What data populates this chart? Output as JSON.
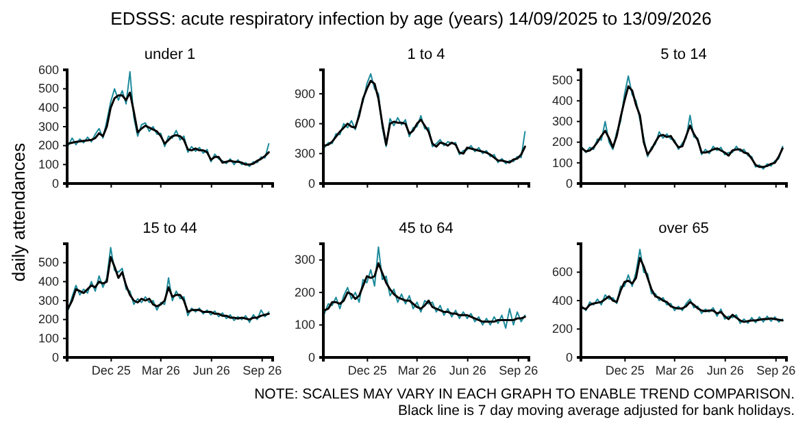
{
  "chart_data": [
    {
      "type": "line",
      "title": "under 1",
      "ylabel": "daily attendances",
      "annotations": [
        "EDSSS: acute respiratory infection by age (years) 14/09/2025 to 13/09/2026"
      ],
      "tick_labels": "y",
      "xlim": [
        "2025-09-12",
        "2026-09-20"
      ],
      "xticks": [
        {
          "value": "2025-12-01",
          "label": null
        },
        {
          "value": "2026-03-01",
          "label": null
        },
        {
          "value": "2026-06-01",
          "label": null
        },
        {
          "value": "2026-09-01",
          "label": null
        }
      ],
      "ylim": [
        0,
        600
      ],
      "yticks": [
        0,
        100,
        200,
        300,
        400,
        500,
        600
      ],
      "x": [
        "2025-09-14",
        "2025-09-21",
        "2025-09-28",
        "2025-10-05",
        "2025-10-12",
        "2025-10-19",
        "2025-10-26",
        "2025-11-02",
        "2025-11-09",
        "2025-11-16",
        "2025-11-23",
        "2025-11-30",
        "2025-12-07",
        "2025-12-14",
        "2025-12-21",
        "2025-12-28",
        "2026-01-04",
        "2026-01-11",
        "2026-01-18",
        "2026-01-25",
        "2026-02-01",
        "2026-02-08",
        "2026-02-15",
        "2026-02-22",
        "2026-03-01",
        "2026-03-08",
        "2026-03-15",
        "2026-03-22",
        "2026-03-29",
        "2026-04-05",
        "2026-04-12",
        "2026-04-19",
        "2026-04-26",
        "2026-05-03",
        "2026-05-10",
        "2026-05-17",
        "2026-05-24",
        "2026-05-31",
        "2026-06-07",
        "2026-06-14",
        "2026-06-21",
        "2026-06-28",
        "2026-07-05",
        "2026-07-12",
        "2026-07-19",
        "2026-07-26",
        "2026-08-02",
        "2026-08-09",
        "2026-08-16",
        "2026-08-23",
        "2026-08-30",
        "2026-09-06",
        "2026-09-13"
      ],
      "series": [
        {
          "color": "#1b8a9a",
          "values": [
            200,
            240,
            205,
            235,
            215,
            245,
            220,
            260,
            290,
            240,
            330,
            430,
            500,
            440,
            490,
            420,
            590,
            350,
            250,
            310,
            320,
            275,
            300,
            260,
            265,
            195,
            250,
            240,
            280,
            230,
            250,
            165,
            195,
            170,
            190,
            160,
            180,
            115,
            155,
            130,
            120,
            105,
            130,
            100,
            125,
            100,
            110,
            90,
            115,
            110,
            140,
            135,
            210
          ]
        },
        {
          "color": "#000000",
          "values": [
            210,
            215,
            220,
            222,
            225,
            228,
            230,
            240,
            265,
            250,
            300,
            400,
            450,
            465,
            465,
            440,
            480,
            380,
            270,
            290,
            305,
            295,
            285,
            275,
            250,
            210,
            230,
            250,
            255,
            250,
            230,
            180,
            175,
            185,
            175,
            175,
            165,
            125,
            140,
            140,
            110,
            115,
            120,
            115,
            115,
            110,
            100,
            100,
            105,
            120,
            130,
            145,
            165
          ]
        }
      ]
    },
    {
      "type": "line",
      "title": "1 to 4",
      "tick_labels": "y",
      "xlim": [
        "2025-09-12",
        "2026-09-20"
      ],
      "xticks": [
        {
          "value": "2025-12-01",
          "label": null
        },
        {
          "value": "2026-03-01",
          "label": null
        },
        {
          "value": "2026-06-01",
          "label": null
        },
        {
          "value": "2026-09-01",
          "label": null
        }
      ],
      "ylim": [
        0,
        1140
      ],
      "yticks": [
        0,
        300,
        600,
        900
      ],
      "x": [
        "2025-09-14",
        "2025-09-21",
        "2025-09-28",
        "2025-10-05",
        "2025-10-12",
        "2025-10-19",
        "2025-10-26",
        "2025-11-02",
        "2025-11-09",
        "2025-11-16",
        "2025-11-23",
        "2025-11-30",
        "2025-12-07",
        "2025-12-14",
        "2025-12-21",
        "2025-12-28",
        "2026-01-04",
        "2026-01-11",
        "2026-01-18",
        "2026-01-25",
        "2026-02-01",
        "2026-02-08",
        "2026-02-15",
        "2026-02-22",
        "2026-03-01",
        "2026-03-08",
        "2026-03-15",
        "2026-03-22",
        "2026-03-29",
        "2026-04-05",
        "2026-04-12",
        "2026-04-19",
        "2026-04-26",
        "2026-05-03",
        "2026-05-10",
        "2026-05-17",
        "2026-05-24",
        "2026-05-31",
        "2026-06-07",
        "2026-06-14",
        "2026-06-21",
        "2026-06-28",
        "2026-07-05",
        "2026-07-12",
        "2026-07-19",
        "2026-07-26",
        "2026-08-02",
        "2026-08-09",
        "2026-08-16",
        "2026-08-23",
        "2026-08-30",
        "2026-09-06",
        "2026-09-13"
      ],
      "series": [
        {
          "color": "#1b8a9a",
          "values": [
            360,
            410,
            400,
            500,
            490,
            600,
            560,
            630,
            540,
            720,
            820,
            1000,
            1100,
            950,
            900,
            560,
            370,
            650,
            580,
            660,
            590,
            640,
            470,
            560,
            570,
            680,
            550,
            560,
            370,
            400,
            440,
            380,
            420,
            400,
            410,
            290,
            330,
            340,
            380,
            320,
            360,
            300,
            330,
            270,
            290,
            210,
            250,
            200,
            230,
            220,
            270,
            260,
            520
          ]
        },
        {
          "color": "#000000",
          "values": [
            380,
            390,
            420,
            470,
            520,
            560,
            600,
            570,
            560,
            680,
            850,
            950,
            1030,
            1000,
            850,
            600,
            390,
            600,
            620,
            610,
            610,
            600,
            500,
            530,
            600,
            640,
            580,
            520,
            400,
            370,
            410,
            400,
            380,
            410,
            390,
            310,
            300,
            360,
            350,
            340,
            330,
            320,
            310,
            290,
            260,
            230,
            230,
            220,
            210,
            240,
            250,
            290,
            370
          ]
        }
      ]
    },
    {
      "type": "line",
      "title": "5 to 14",
      "tick_labels": "y",
      "xlim": [
        "2025-09-12",
        "2026-09-20"
      ],
      "xticks": [
        {
          "value": "2025-12-01",
          "label": null
        },
        {
          "value": "2026-03-01",
          "label": null
        },
        {
          "value": "2026-06-01",
          "label": null
        },
        {
          "value": "2026-09-01",
          "label": null
        }
      ],
      "ylim": [
        0,
        550
      ],
      "yticks": [
        0,
        100,
        200,
        300,
        400,
        500
      ],
      "x": [
        "2025-09-14",
        "2025-09-21",
        "2025-09-28",
        "2025-10-05",
        "2025-10-12",
        "2025-10-19",
        "2025-10-26",
        "2025-11-02",
        "2025-11-09",
        "2025-11-16",
        "2025-11-23",
        "2025-11-30",
        "2025-12-07",
        "2025-12-14",
        "2025-12-21",
        "2025-12-28",
        "2026-01-04",
        "2026-01-11",
        "2026-01-18",
        "2026-01-25",
        "2026-02-01",
        "2026-02-08",
        "2026-02-15",
        "2026-02-22",
        "2026-03-01",
        "2026-03-08",
        "2026-03-15",
        "2026-03-22",
        "2026-03-29",
        "2026-04-05",
        "2026-04-12",
        "2026-04-19",
        "2026-04-26",
        "2026-05-03",
        "2026-05-10",
        "2026-05-17",
        "2026-05-24",
        "2026-05-31",
        "2026-06-07",
        "2026-06-14",
        "2026-06-21",
        "2026-06-28",
        "2026-07-05",
        "2026-07-12",
        "2026-07-19",
        "2026-07-26",
        "2026-08-02",
        "2026-08-09",
        "2026-08-16",
        "2026-08-23",
        "2026-08-30",
        "2026-09-06",
        "2026-09-13"
      ],
      "series": [
        {
          "color": "#1b8a9a",
          "values": [
            175,
            150,
            175,
            165,
            215,
            210,
            300,
            200,
            165,
            250,
            300,
            430,
            520,
            430,
            400,
            310,
            220,
            130,
            175,
            190,
            250,
            220,
            240,
            215,
            210,
            165,
            195,
            220,
            330,
            225,
            220,
            140,
            165,
            145,
            180,
            160,
            175,
            140,
            150,
            150,
            180,
            155,
            165,
            135,
            130,
            80,
            90,
            70,
            95,
            85,
            110,
            120,
            180
          ]
        },
        {
          "color": "#000000",
          "values": [
            170,
            155,
            160,
            175,
            200,
            230,
            255,
            220,
            175,
            230,
            320,
            400,
            470,
            450,
            380,
            330,
            200,
            140,
            165,
            200,
            230,
            235,
            225,
            230,
            200,
            175,
            180,
            230,
            280,
            240,
            210,
            150,
            150,
            155,
            165,
            170,
            160,
            150,
            135,
            160,
            165,
            165,
            150,
            145,
            120,
            90,
            80,
            80,
            85,
            95,
            100,
            130,
            170
          ]
        }
      ]
    },
    {
      "type": "line",
      "title": "15 to 44",
      "xlim": [
        "2025-09-12",
        "2026-09-20"
      ],
      "xticks": [
        {
          "value": "2025-12-01",
          "label": "Dec 25"
        },
        {
          "value": "2026-03-01",
          "label": "Mar 26"
        },
        {
          "value": "2026-06-01",
          "label": "Jun 26"
        },
        {
          "value": "2026-09-01",
          "label": "Sep 26"
        }
      ],
      "ylim": [
        0,
        600
      ],
      "yticks": [
        0,
        100,
        200,
        300,
        400,
        500
      ],
      "x": [
        "2025-09-14",
        "2025-09-21",
        "2025-09-28",
        "2025-10-05",
        "2025-10-12",
        "2025-10-19",
        "2025-10-26",
        "2025-11-02",
        "2025-11-09",
        "2025-11-16",
        "2025-11-23",
        "2025-11-30",
        "2025-12-07",
        "2025-12-14",
        "2025-12-21",
        "2025-12-28",
        "2026-01-04",
        "2026-01-11",
        "2026-01-18",
        "2026-01-25",
        "2026-02-01",
        "2026-02-08",
        "2026-02-15",
        "2026-02-22",
        "2026-03-01",
        "2026-03-08",
        "2026-03-15",
        "2026-03-22",
        "2026-03-29",
        "2026-04-05",
        "2026-04-12",
        "2026-04-19",
        "2026-04-26",
        "2026-05-03",
        "2026-05-10",
        "2026-05-17",
        "2026-05-24",
        "2026-05-31",
        "2026-06-07",
        "2026-06-14",
        "2026-06-21",
        "2026-06-28",
        "2026-07-05",
        "2026-07-12",
        "2026-07-19",
        "2026-07-26",
        "2026-08-02",
        "2026-08-09",
        "2026-08-16",
        "2026-08-23",
        "2026-08-30",
        "2026-09-06",
        "2026-09-13"
      ],
      "series": [
        {
          "color": "#1b8a9a",
          "values": [
            250,
            320,
            380,
            330,
            360,
            340,
            400,
            350,
            430,
            370,
            420,
            580,
            460,
            450,
            470,
            360,
            350,
            280,
            310,
            290,
            320,
            290,
            300,
            250,
            290,
            280,
            420,
            300,
            350,
            310,
            320,
            220,
            260,
            240,
            260,
            230,
            250,
            225,
            245,
            215,
            235,
            205,
            225,
            195,
            215,
            200,
            220,
            185,
            225,
            200,
            250,
            215,
            240
          ]
        },
        {
          "color": "#000000",
          "values": [
            260,
            300,
            360,
            350,
            340,
            360,
            380,
            370,
            400,
            390,
            400,
            530,
            480,
            420,
            450,
            380,
            330,
            300,
            290,
            310,
            300,
            310,
            280,
            270,
            280,
            300,
            370,
            320,
            330,
            330,
            300,
            240,
            250,
            250,
            250,
            240,
            240,
            240,
            230,
            230,
            220,
            220,
            210,
            210,
            205,
            210,
            205,
            200,
            210,
            210,
            220,
            225,
            230
          ]
        }
      ]
    },
    {
      "type": "line",
      "title": "45 to 64",
      "xlim": [
        "2025-09-12",
        "2026-09-20"
      ],
      "xticks": [
        {
          "value": "2025-12-01",
          "label": "Dec 25"
        },
        {
          "value": "2026-03-01",
          "label": "Mar 26"
        },
        {
          "value": "2026-06-01",
          "label": "Jun 26"
        },
        {
          "value": "2026-09-01",
          "label": "Sep 26"
        }
      ],
      "ylim": [
        0,
        350
      ],
      "yticks": [
        0,
        100,
        200,
        300
      ],
      "x": [
        "2025-09-14",
        "2025-09-21",
        "2025-09-28",
        "2025-10-05",
        "2025-10-12",
        "2025-10-19",
        "2025-10-26",
        "2025-11-02",
        "2025-11-09",
        "2025-11-16",
        "2025-11-23",
        "2025-11-30",
        "2025-12-07",
        "2025-12-14",
        "2025-12-21",
        "2025-12-28",
        "2026-01-04",
        "2026-01-11",
        "2026-01-18",
        "2026-01-25",
        "2026-02-01",
        "2026-02-08",
        "2026-02-15",
        "2026-02-22",
        "2026-03-01",
        "2026-03-08",
        "2026-03-15",
        "2026-03-22",
        "2026-03-29",
        "2026-04-05",
        "2026-04-12",
        "2026-04-19",
        "2026-04-26",
        "2026-05-03",
        "2026-05-10",
        "2026-05-17",
        "2026-05-24",
        "2026-05-31",
        "2026-06-07",
        "2026-06-14",
        "2026-06-21",
        "2026-06-28",
        "2026-07-05",
        "2026-07-12",
        "2026-07-19",
        "2026-07-26",
        "2026-08-02",
        "2026-08-09",
        "2026-08-16",
        "2026-08-23",
        "2026-08-30",
        "2026-09-06",
        "2026-09-13"
      ],
      "series": [
        {
          "color": "#1b8a9a",
          "values": [
            135,
            165,
            160,
            185,
            150,
            190,
            215,
            180,
            200,
            170,
            240,
            230,
            270,
            220,
            340,
            240,
            250,
            190,
            210,
            170,
            195,
            165,
            190,
            150,
            170,
            140,
            175,
            165,
            170,
            140,
            160,
            130,
            150,
            125,
            145,
            120,
            140,
            120,
            135,
            110,
            125,
            100,
            120,
            100,
            125,
            105,
            130,
            90,
            150,
            100,
            140,
            110,
            130
          ]
        },
        {
          "color": "#000000",
          "values": [
            145,
            150,
            170,
            170,
            165,
            175,
            200,
            195,
            180,
            190,
            220,
            250,
            245,
            250,
            290,
            260,
            230,
            210,
            195,
            185,
            180,
            175,
            175,
            165,
            155,
            150,
            160,
            175,
            155,
            150,
            145,
            140,
            140,
            135,
            135,
            130,
            130,
            130,
            125,
            120,
            115,
            110,
            110,
            110,
            110,
            115,
            115,
            115,
            115,
            115,
            120,
            120,
            125
          ]
        }
      ]
    },
    {
      "type": "line",
      "title": "over 65",
      "annotations": [
        "NOTE: SCALES MAY VARY IN EACH GRAPH TO ENABLE TREND COMPARISON.",
        "Black line is 7 day moving average adjusted for bank holidays."
      ],
      "xlim": [
        "2025-09-12",
        "2026-09-20"
      ],
      "xticks": [
        {
          "value": "2025-12-01",
          "label": "Dec 25"
        },
        {
          "value": "2026-03-01",
          "label": "Mar 26"
        },
        {
          "value": "2026-06-01",
          "label": "Jun 26"
        },
        {
          "value": "2026-09-01",
          "label": "Sep 26"
        }
      ],
      "ylim": [
        0,
        800
      ],
      "yticks": [
        0,
        200,
        400,
        600
      ],
      "x": [
        "2025-09-14",
        "2025-09-21",
        "2025-09-28",
        "2025-10-05",
        "2025-10-12",
        "2025-10-19",
        "2025-10-26",
        "2025-11-02",
        "2025-11-09",
        "2025-11-16",
        "2025-11-23",
        "2025-11-30",
        "2025-12-07",
        "2025-12-14",
        "2025-12-21",
        "2025-12-28",
        "2026-01-04",
        "2026-01-11",
        "2026-01-18",
        "2026-01-25",
        "2026-02-01",
        "2026-02-08",
        "2026-02-15",
        "2026-02-22",
        "2026-03-01",
        "2026-03-08",
        "2026-03-15",
        "2026-03-22",
        "2026-03-29",
        "2026-04-05",
        "2026-04-12",
        "2026-04-19",
        "2026-04-26",
        "2026-05-03",
        "2026-05-10",
        "2026-05-17",
        "2026-05-24",
        "2026-05-31",
        "2026-06-07",
        "2026-06-14",
        "2026-06-21",
        "2026-06-28",
        "2026-07-05",
        "2026-07-12",
        "2026-07-19",
        "2026-07-26",
        "2026-08-02",
        "2026-08-09",
        "2026-08-16",
        "2026-08-23",
        "2026-08-30",
        "2026-09-06",
        "2026-09-13"
      ],
      "series": [
        {
          "color": "#1b8a9a",
          "values": [
            360,
            330,
            390,
            370,
            410,
            370,
            440,
            410,
            420,
            380,
            500,
            500,
            580,
            500,
            600,
            760,
            600,
            590,
            450,
            450,
            400,
            420,
            370,
            380,
            330,
            360,
            330,
            380,
            410,
            350,
            360,
            310,
            340,
            320,
            350,
            290,
            340,
            270,
            290,
            280,
            300,
            240,
            270,
            240,
            280,
            245,
            285,
            250,
            290,
            255,
            285,
            250,
            270
          ]
        },
        {
          "color": "#000000",
          "values": [
            350,
            340,
            370,
            380,
            385,
            390,
            410,
            430,
            400,
            390,
            470,
            530,
            540,
            520,
            560,
            700,
            640,
            560,
            480,
            430,
            420,
            400,
            390,
            360,
            350,
            345,
            345,
            360,
            390,
            370,
            345,
            330,
            325,
            330,
            330,
            310,
            320,
            290,
            270,
            300,
            280,
            260,
            250,
            255,
            260,
            260,
            265,
            270,
            270,
            275,
            270,
            265,
            260
          ]
        }
      ]
    }
  ]
}
